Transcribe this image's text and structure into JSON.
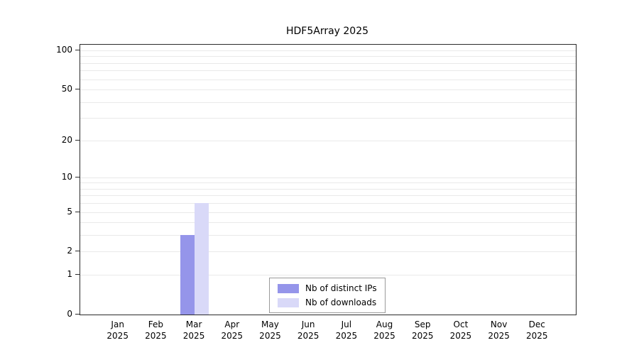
{
  "chart_data": {
    "type": "bar",
    "title": "HDF5Array 2025",
    "categories": [
      "Jan",
      "Feb",
      "Mar",
      "Apr",
      "May",
      "Jun",
      "Jul",
      "Aug",
      "Sep",
      "Oct",
      "Nov",
      "Dec"
    ],
    "year_label": "2025",
    "series": [
      {
        "name": "Nb of distinct IPs",
        "color": "#9595ea",
        "values": [
          0,
          0,
          3,
          0,
          0,
          0,
          0,
          0,
          0,
          0,
          0,
          0
        ]
      },
      {
        "name": "Nb of downloads",
        "color": "#d9d9f8",
        "values": [
          0,
          0,
          6,
          0,
          0,
          0,
          0,
          0,
          0,
          0,
          0,
          0
        ]
      }
    ],
    "y_ticks": [
      0,
      1,
      2,
      5,
      10,
      20,
      50,
      100
    ],
    "scale": "log1p",
    "ylim": [
      0,
      100
    ],
    "gridlines": [
      1,
      2,
      3,
      4,
      5,
      6,
      7,
      8,
      9,
      10,
      20,
      30,
      40,
      50,
      60,
      70,
      80,
      90,
      100
    ],
    "grid_on": true,
    "legend_position": "bottom-center",
    "colors": {
      "grid": "#e9e9e9",
      "axis": "#2b2b2b",
      "background": "#ffffff",
      "text": "#000000"
    }
  }
}
